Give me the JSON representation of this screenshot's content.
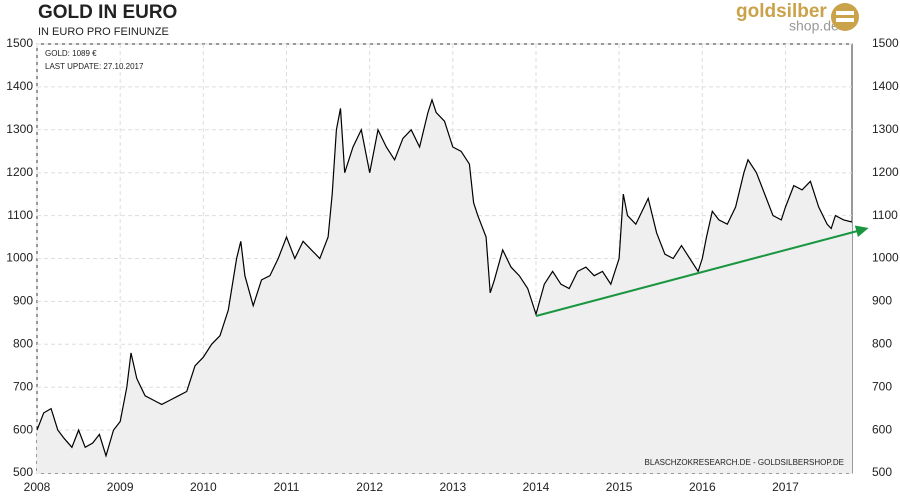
{
  "chart_data": {
    "type": "line",
    "title": "GOLD IN EURO",
    "subtitle": "IN EURO PRO FEINUNZE",
    "annotations": [
      "GOLD: 1089 €",
      "LAST UPDATE: 27.10.2017",
      "BLASCHZOKRESEARCH.DE - GOLDSILBERSHOP.DE"
    ],
    "logo": [
      "goldsilber",
      "shop.de"
    ],
    "grid": true,
    "fill_color": "#efefef",
    "x": [
      2008.0,
      2008.08,
      2008.17,
      2008.25,
      2008.33,
      2008.42,
      2008.5,
      2008.58,
      2008.67,
      2008.75,
      2008.83,
      2008.92,
      2009.0,
      2009.08,
      2009.13,
      2009.2,
      2009.3,
      2009.4,
      2009.5,
      2009.6,
      2009.7,
      2009.8,
      2009.9,
      2010.0,
      2010.1,
      2010.2,
      2010.3,
      2010.4,
      2010.45,
      2010.5,
      2010.6,
      2010.7,
      2010.8,
      2010.9,
      2011.0,
      2011.1,
      2011.2,
      2011.3,
      2011.4,
      2011.5,
      2011.55,
      2011.6,
      2011.65,
      2011.7,
      2011.8,
      2011.9,
      2012.0,
      2012.1,
      2012.2,
      2012.3,
      2012.4,
      2012.5,
      2012.6,
      2012.7,
      2012.75,
      2012.8,
      2012.9,
      2013.0,
      2013.1,
      2013.2,
      2013.25,
      2013.3,
      2013.4,
      2013.45,
      2013.5,
      2013.6,
      2013.7,
      2013.8,
      2013.9,
      2014.0,
      2014.1,
      2014.2,
      2014.3,
      2014.4,
      2014.5,
      2014.6,
      2014.7,
      2014.8,
      2014.9,
      2015.0,
      2015.05,
      2015.1,
      2015.2,
      2015.3,
      2015.35,
      2015.45,
      2015.55,
      2015.65,
      2015.75,
      2015.85,
      2015.95,
      2016.0,
      2016.05,
      2016.12,
      2016.2,
      2016.3,
      2016.4,
      2016.5,
      2016.55,
      2016.65,
      2016.75,
      2016.85,
      2016.95,
      2017.0,
      2017.1,
      2017.2,
      2017.3,
      2017.4,
      2017.5,
      2017.55,
      2017.6,
      2017.7,
      2017.8
    ],
    "series": [
      {
        "color": "#000000",
        "values": [
          600,
          640,
          650,
          600,
          580,
          560,
          600,
          560,
          570,
          590,
          540,
          600,
          620,
          700,
          780,
          720,
          680,
          670,
          660,
          670,
          680,
          690,
          750,
          770,
          800,
          820,
          880,
          1000,
          1040,
          960,
          890,
          950,
          960,
          1000,
          1050,
          1000,
          1040,
          1020,
          1000,
          1050,
          1150,
          1300,
          1350,
          1200,
          1260,
          1300,
          1200,
          1300,
          1260,
          1230,
          1280,
          1300,
          1260,
          1340,
          1370,
          1340,
          1320,
          1260,
          1250,
          1220,
          1130,
          1100,
          1050,
          920,
          950,
          1020,
          980,
          960,
          930,
          870,
          940,
          970,
          940,
          930,
          970,
          980,
          960,
          970,
          940,
          1000,
          1150,
          1100,
          1080,
          1120,
          1140,
          1060,
          1010,
          1000,
          1030,
          1000,
          970,
          1000,
          1050,
          1110,
          1090,
          1080,
          1120,
          1200,
          1230,
          1200,
          1150,
          1100,
          1090,
          1120,
          1170,
          1160,
          1180,
          1120,
          1080,
          1070,
          1100,
          1090,
          1085
        ]
      }
    ],
    "trend": {
      "color": "#1a9641",
      "x": [
        2014.0,
        2018.0
      ],
      "y": [
        866,
        1071
      ]
    },
    "xlim": [
      2008,
      2017.8
    ],
    "xticks": [
      2008,
      2009,
      2010,
      2011,
      2012,
      2013,
      2014,
      2015,
      2016,
      2017
    ],
    "ylim": [
      500,
      1500
    ],
    "yticks": [
      500,
      600,
      700,
      800,
      900,
      1000,
      1100,
      1200,
      1300,
      1400,
      1500
    ]
  }
}
